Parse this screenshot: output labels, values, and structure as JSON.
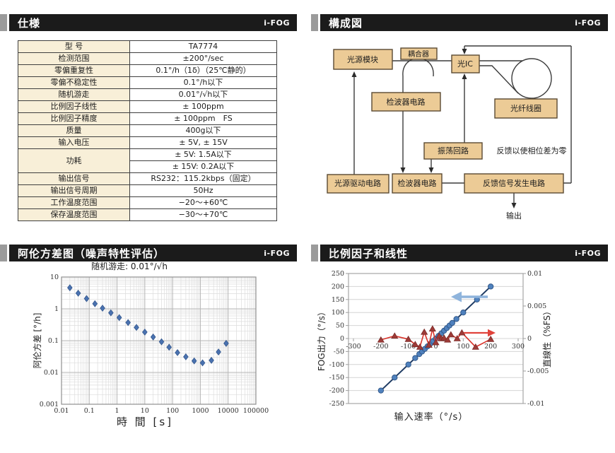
{
  "brand": "i-FOG",
  "colors": {
    "header_bg": "#1b1b1b",
    "header_accent": "#9b9b9b",
    "table_label_bg": "#f8efd8",
    "box_fill": "#eccb96",
    "box_border": "#5a4a33",
    "allan_marker": "#4a72b0",
    "fog_line": "#1f3b63",
    "fog_marker": "#4f81bd",
    "linearity_line": "#d9342b",
    "linearity_marker": "#9e3b38",
    "arrow_blue": "#8fb4dc",
    "arrow_red": "#e0423a"
  },
  "panels": {
    "spec": {
      "title": "仕様",
      "table": {
        "rows": [
          {
            "label": "型 号",
            "values": [
              "TA7774"
            ]
          },
          {
            "label": "检测范围",
            "values": [
              "±200°/sec"
            ]
          },
          {
            "label": "零偏重复性",
            "values": [
              "0.1°/h（1δ）（25℃静的）"
            ]
          },
          {
            "label": "零偏不稳定性",
            "values": [
              "0.1°/h以下"
            ]
          },
          {
            "label": "随机游走",
            "values": [
              "0.01°/√h以下"
            ]
          },
          {
            "label": "比例因子线性",
            "values": [
              "± 100ppm"
            ]
          },
          {
            "label": "比例因子精度",
            "values": [
              "± 100ppm　FS"
            ]
          },
          {
            "label": "质量",
            "values": [
              "400g以下"
            ]
          },
          {
            "label": "输入电压",
            "values": [
              "± 5V, ± 15V"
            ]
          },
          {
            "label": "功耗",
            "values": [
              "± 5V: 1.5A以下",
              "± 15V: 0.2A以下"
            ]
          },
          {
            "label": "输出信号",
            "values": [
              "RS232：115.2kbps（固定）"
            ]
          },
          {
            "label": "输出信号周期",
            "values": [
              "50Hz"
            ]
          },
          {
            "label": "工作温度范围",
            "values": [
              "−20～+60℃"
            ]
          },
          {
            "label": "保存温度范围",
            "values": [
              "−30～+70℃"
            ]
          }
        ]
      }
    },
    "diagram": {
      "title": "構成図",
      "boxes": {
        "light_source": "光源模块",
        "coupler": "耦合器",
        "optic_ic": "光IC",
        "fiber_coil": "光纤线圈",
        "detector_upper": "检波器电路",
        "oscillator": "振荡回路",
        "source_driver": "光源驱动电路",
        "detector_lower": "检波器电路",
        "feedback_gen": "反馈信号发生电路"
      },
      "notes": {
        "feedback": "反馈以使相位差为零",
        "output": "输出"
      }
    },
    "allan": {
      "title": "阿伦方差图（噪声特性评估）"
    },
    "linearity": {
      "title": "比例因子和线性"
    }
  },
  "chart_data": [
    {
      "type": "scatter",
      "title": "随机游走: 0.01°/√h",
      "xlabel": "時 間 [s]",
      "ylabel": "阿伦方差 [°/h]",
      "xscale": "log",
      "yscale": "log",
      "xlim": [
        0.01,
        100000
      ],
      "ylim": [
        0.001,
        10
      ],
      "grid": "major+minor",
      "xticks": [
        0.01,
        0.1,
        1,
        10,
        100,
        1000,
        10000,
        100000
      ],
      "xtick_labels": [
        "0.01",
        "0.1",
        "1",
        "10",
        "100",
        "1000",
        "10000",
        "100000"
      ],
      "yticks": [
        10,
        1,
        0.1,
        0.01,
        0.001
      ],
      "ytick_labels": [
        "10",
        "1",
        "0.1",
        "0.01",
        "0.001"
      ],
      "marker": "diamond",
      "color": "#4a72b0",
      "x": [
        0.02,
        0.04,
        0.08,
        0.16,
        0.3,
        0.6,
        1.2,
        2.5,
        5,
        10,
        20,
        40,
        75,
        150,
        300,
        600,
        1200,
        2500,
        4500,
        8500
      ],
      "y": [
        4.6,
        3.1,
        2.1,
        1.45,
        1.05,
        0.75,
        0.53,
        0.37,
        0.26,
        0.185,
        0.13,
        0.092,
        0.062,
        0.042,
        0.031,
        0.023,
        0.02,
        0.024,
        0.044,
        0.082
      ]
    },
    {
      "type": "line",
      "title": "比例因子和线性",
      "xlabel": "输入速率（°/s）",
      "ylabel_left": "FOG出力（°/s）",
      "ylabel_right": "直線性（%FS）",
      "xticks": [
        -300,
        -200,
        -100,
        0,
        100,
        200,
        300
      ],
      "ylim_left": [
        -250,
        250
      ],
      "yticks_left": [
        250,
        200,
        150,
        100,
        50,
        0,
        -50,
        -100,
        -150,
        -200,
        -250
      ],
      "ylim_right": [
        -0.01,
        0.01
      ],
      "yticks_right_values": [
        0.01,
        0.005,
        0,
        -0.005,
        -0.01
      ],
      "yticks_right_labels": [
        "0.01",
        "0.005",
        "0",
        "-0.005",
        "-0.01"
      ],
      "grid": "horizontal",
      "series": [
        {
          "name": "FOG输出",
          "axis": "left",
          "marker": "circle",
          "line_color": "#1f3b63",
          "marker_color": "#4f81bd",
          "x": [
            -200,
            -150,
            -100,
            -75,
            -60,
            -50,
            -40,
            -30,
            -20,
            -10,
            0,
            10,
            20,
            30,
            40,
            50,
            60,
            75,
            100,
            150,
            200
          ],
          "y": [
            -200,
            -150,
            -100,
            -75,
            -60,
            -50,
            -40,
            -30,
            -20,
            -10,
            0,
            10,
            20,
            30,
            40,
            50,
            60,
            75,
            100,
            150,
            200
          ]
        },
        {
          "name": "直线性",
          "axis": "right",
          "marker": "triangle",
          "line_color": "#d9342b",
          "marker_color": "#9e3b38",
          "x": [
            -200,
            -150,
            -100,
            -75,
            -58,
            -42,
            -25,
            -12,
            0,
            12,
            20,
            30,
            43,
            55,
            78,
            95,
            145,
            200
          ],
          "y": [
            -0.0002,
            0.0004,
            -0.0001,
            -0.0009,
            -0.0013,
            0.001,
            -0.001,
            0.0015,
            -0.0006,
            0.0004,
            0,
            0.0001,
            -0.0002,
            0.0006,
            0,
            0.0009,
            -0.0013,
            -0.0001
          ]
        }
      ]
    }
  ]
}
